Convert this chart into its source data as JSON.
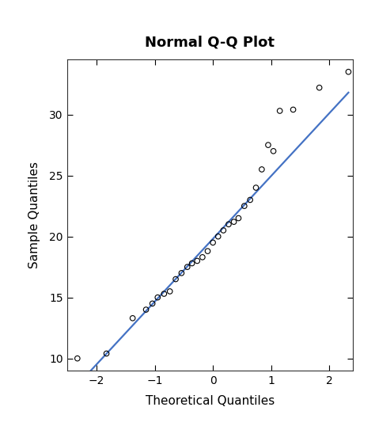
{
  "title": "Normal Q-Q Plot",
  "xlabel": "Theoretical Quantiles",
  "ylabel": "Sample Quantiles",
  "theoretical_quantiles": [
    -2.33,
    -1.83,
    -1.38,
    -1.15,
    -1.04,
    -0.95,
    -0.84,
    -0.74,
    -0.64,
    -0.54,
    -0.44,
    -0.36,
    -0.27,
    -0.18,
    -0.09,
    0.0,
    0.09,
    0.18,
    0.27,
    0.36,
    0.44,
    0.54,
    0.64,
    0.74,
    0.84,
    0.95,
    1.04,
    1.15,
    1.38,
    1.83,
    2.33
  ],
  "sample_quantiles": [
    10.0,
    10.4,
    13.3,
    14.0,
    14.5,
    15.0,
    15.3,
    15.5,
    16.5,
    17.0,
    17.5,
    17.8,
    18.0,
    18.3,
    18.8,
    19.5,
    20.0,
    20.5,
    21.0,
    21.2,
    21.5,
    22.5,
    23.0,
    24.0,
    25.5,
    27.5,
    27.0,
    30.3,
    30.4,
    32.2,
    33.5
  ],
  "line_x": [
    -2.1,
    2.33
  ],
  "line_y": [
    9.0,
    31.8
  ],
  "line_color": "#4472C4",
  "point_color": "#000000",
  "background_color": "#ffffff",
  "xlim": [
    -2.5,
    2.4
  ],
  "ylim": [
    9.0,
    34.5
  ],
  "xticks": [
    -2,
    -1,
    0,
    1,
    2
  ],
  "yticks": [
    10,
    15,
    20,
    25,
    30
  ],
  "title_fontsize": 13,
  "label_fontsize": 11
}
